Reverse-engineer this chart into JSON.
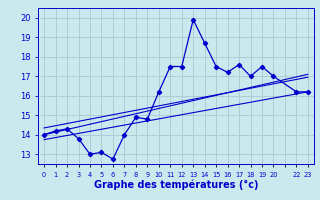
{
  "xlabel": "Graphe des températures (°c)",
  "background_color": "#cce8ef",
  "grid_color": "#aacdd6",
  "line_color": "#0000cc",
  "x_data": [
    0,
    1,
    2,
    3,
    4,
    5,
    6,
    7,
    8,
    9,
    10,
    11,
    12,
    13,
    14,
    15,
    16,
    17,
    18,
    19,
    20,
    22,
    23
  ],
  "y_main": [
    14.0,
    14.2,
    14.3,
    13.8,
    13.0,
    13.1,
    12.75,
    14.0,
    14.9,
    14.8,
    16.2,
    17.5,
    17.5,
    19.9,
    18.7,
    17.5,
    17.2,
    17.6,
    17.0,
    17.5,
    17.0,
    16.2,
    16.2
  ],
  "trend1_x": [
    0,
    23
  ],
  "trend1_y": [
    14.0,
    17.1
  ],
  "trend2_x": [
    0,
    23
  ],
  "trend2_y": [
    14.35,
    16.95
  ],
  "trend3_x": [
    0,
    23
  ],
  "trend3_y": [
    13.75,
    16.2
  ],
  "yticks": [
    13,
    14,
    15,
    16,
    17,
    18,
    19,
    20
  ],
  "ylim": [
    12.5,
    20.5
  ],
  "xlim": [
    -0.5,
    23.5
  ],
  "xlabel_fontsize": 7,
  "tick_labelsize": 6
}
